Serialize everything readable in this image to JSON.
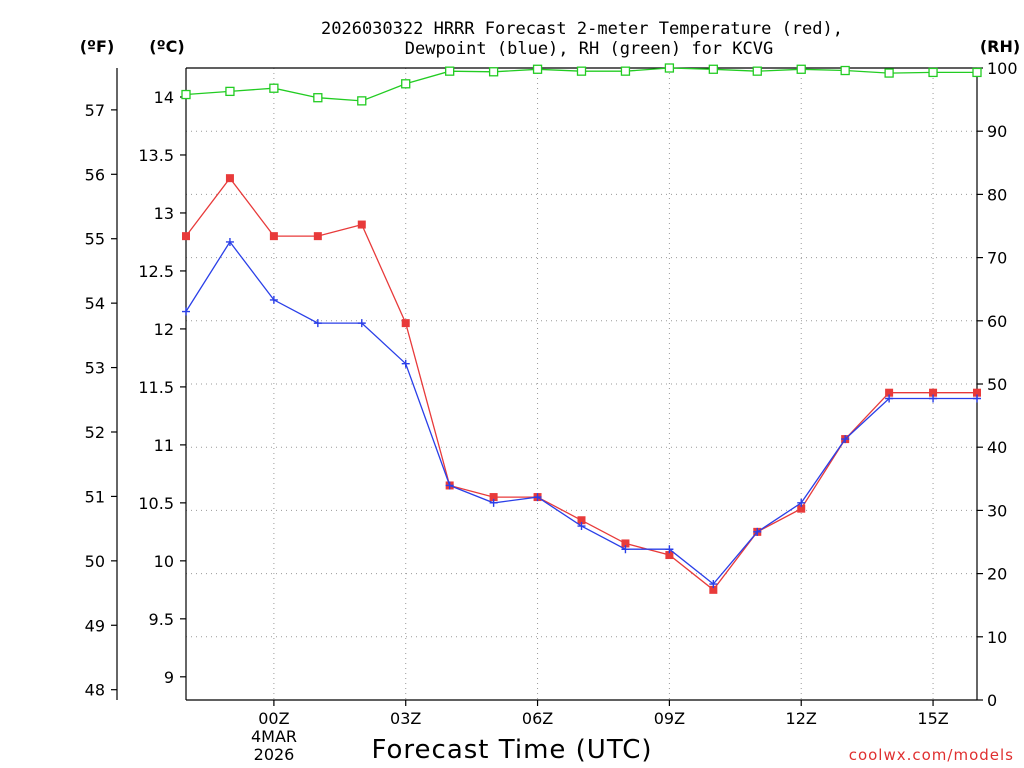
{
  "chart_data": {
    "type": "line",
    "title_line1": "2026030322 HRRR Forecast 2-meter Temperature (red),",
    "title_line2": "Dewpoint (blue), RH (green) for KCVG",
    "unit_f": "(ºF)",
    "unit_c": "(ºC)",
    "unit_rh": "(RH)",
    "xlabel": "Forecast Time (UTC)",
    "credit": "coolwx.com/models",
    "x_hours": [
      -2,
      -1,
      0,
      1,
      2,
      3,
      4,
      5,
      6,
      7,
      8,
      9,
      10,
      11,
      12,
      13,
      14,
      15,
      16
    ],
    "xlim": [
      -2,
      16
    ],
    "x_ticks": [
      {
        "hour": 0,
        "label": "00Z"
      },
      {
        "hour": 3,
        "label": "03Z"
      },
      {
        "hour": 6,
        "label": "06Z"
      },
      {
        "hour": 9,
        "label": "09Z"
      },
      {
        "hour": 12,
        "label": "12Z"
      },
      {
        "hour": 15,
        "label": "15Z"
      }
    ],
    "date_label_line1": "4MAR",
    "date_label_line2": "2026",
    "celsius_axis": {
      "lim": [
        8.8,
        14.25
      ],
      "ticks": [
        "9",
        "9.5",
        "10",
        "10.5",
        "11",
        "11.5",
        "12",
        "12.5",
        "13",
        "13.5",
        "14"
      ]
    },
    "fahrenheit_axis": {
      "ticks": [
        "48",
        "49",
        "50",
        "51",
        "52",
        "53",
        "54",
        "55",
        "56",
        "57"
      ]
    },
    "rh_axis": {
      "lim": [
        0,
        100
      ],
      "ticks": [
        "0",
        "10",
        "20",
        "30",
        "40",
        "50",
        "60",
        "70",
        "80",
        "90",
        "100"
      ]
    },
    "series": [
      {
        "name": "Temperature",
        "color": "#e83a3a",
        "marker": "filled-square",
        "units": "C",
        "values": [
          12.8,
          13.3,
          12.8,
          12.8,
          12.9,
          12.05,
          10.65,
          10.55,
          10.55,
          10.35,
          10.15,
          10.05,
          9.75,
          10.25,
          10.45,
          11.05,
          11.45,
          11.45,
          11.45
        ]
      },
      {
        "name": "Dewpoint",
        "color": "#2a3fe8",
        "marker": "plus",
        "units": "C",
        "values": [
          12.15,
          12.75,
          12.25,
          12.05,
          12.05,
          11.7,
          10.65,
          10.5,
          10.55,
          10.3,
          10.1,
          10.1,
          9.8,
          10.25,
          10.5,
          11.05,
          11.4,
          11.4,
          11.4
        ]
      },
      {
        "name": "RH",
        "color": "#22cc22",
        "marker": "open-square",
        "units": "%",
        "values": [
          95.8,
          96.3,
          96.8,
          95.3,
          94.8,
          97.5,
          99.5,
          99.4,
          99.8,
          99.5,
          99.5,
          100,
          99.8,
          99.5,
          99.8,
          99.6,
          99.2,
          99.3,
          99.3
        ]
      }
    ]
  }
}
